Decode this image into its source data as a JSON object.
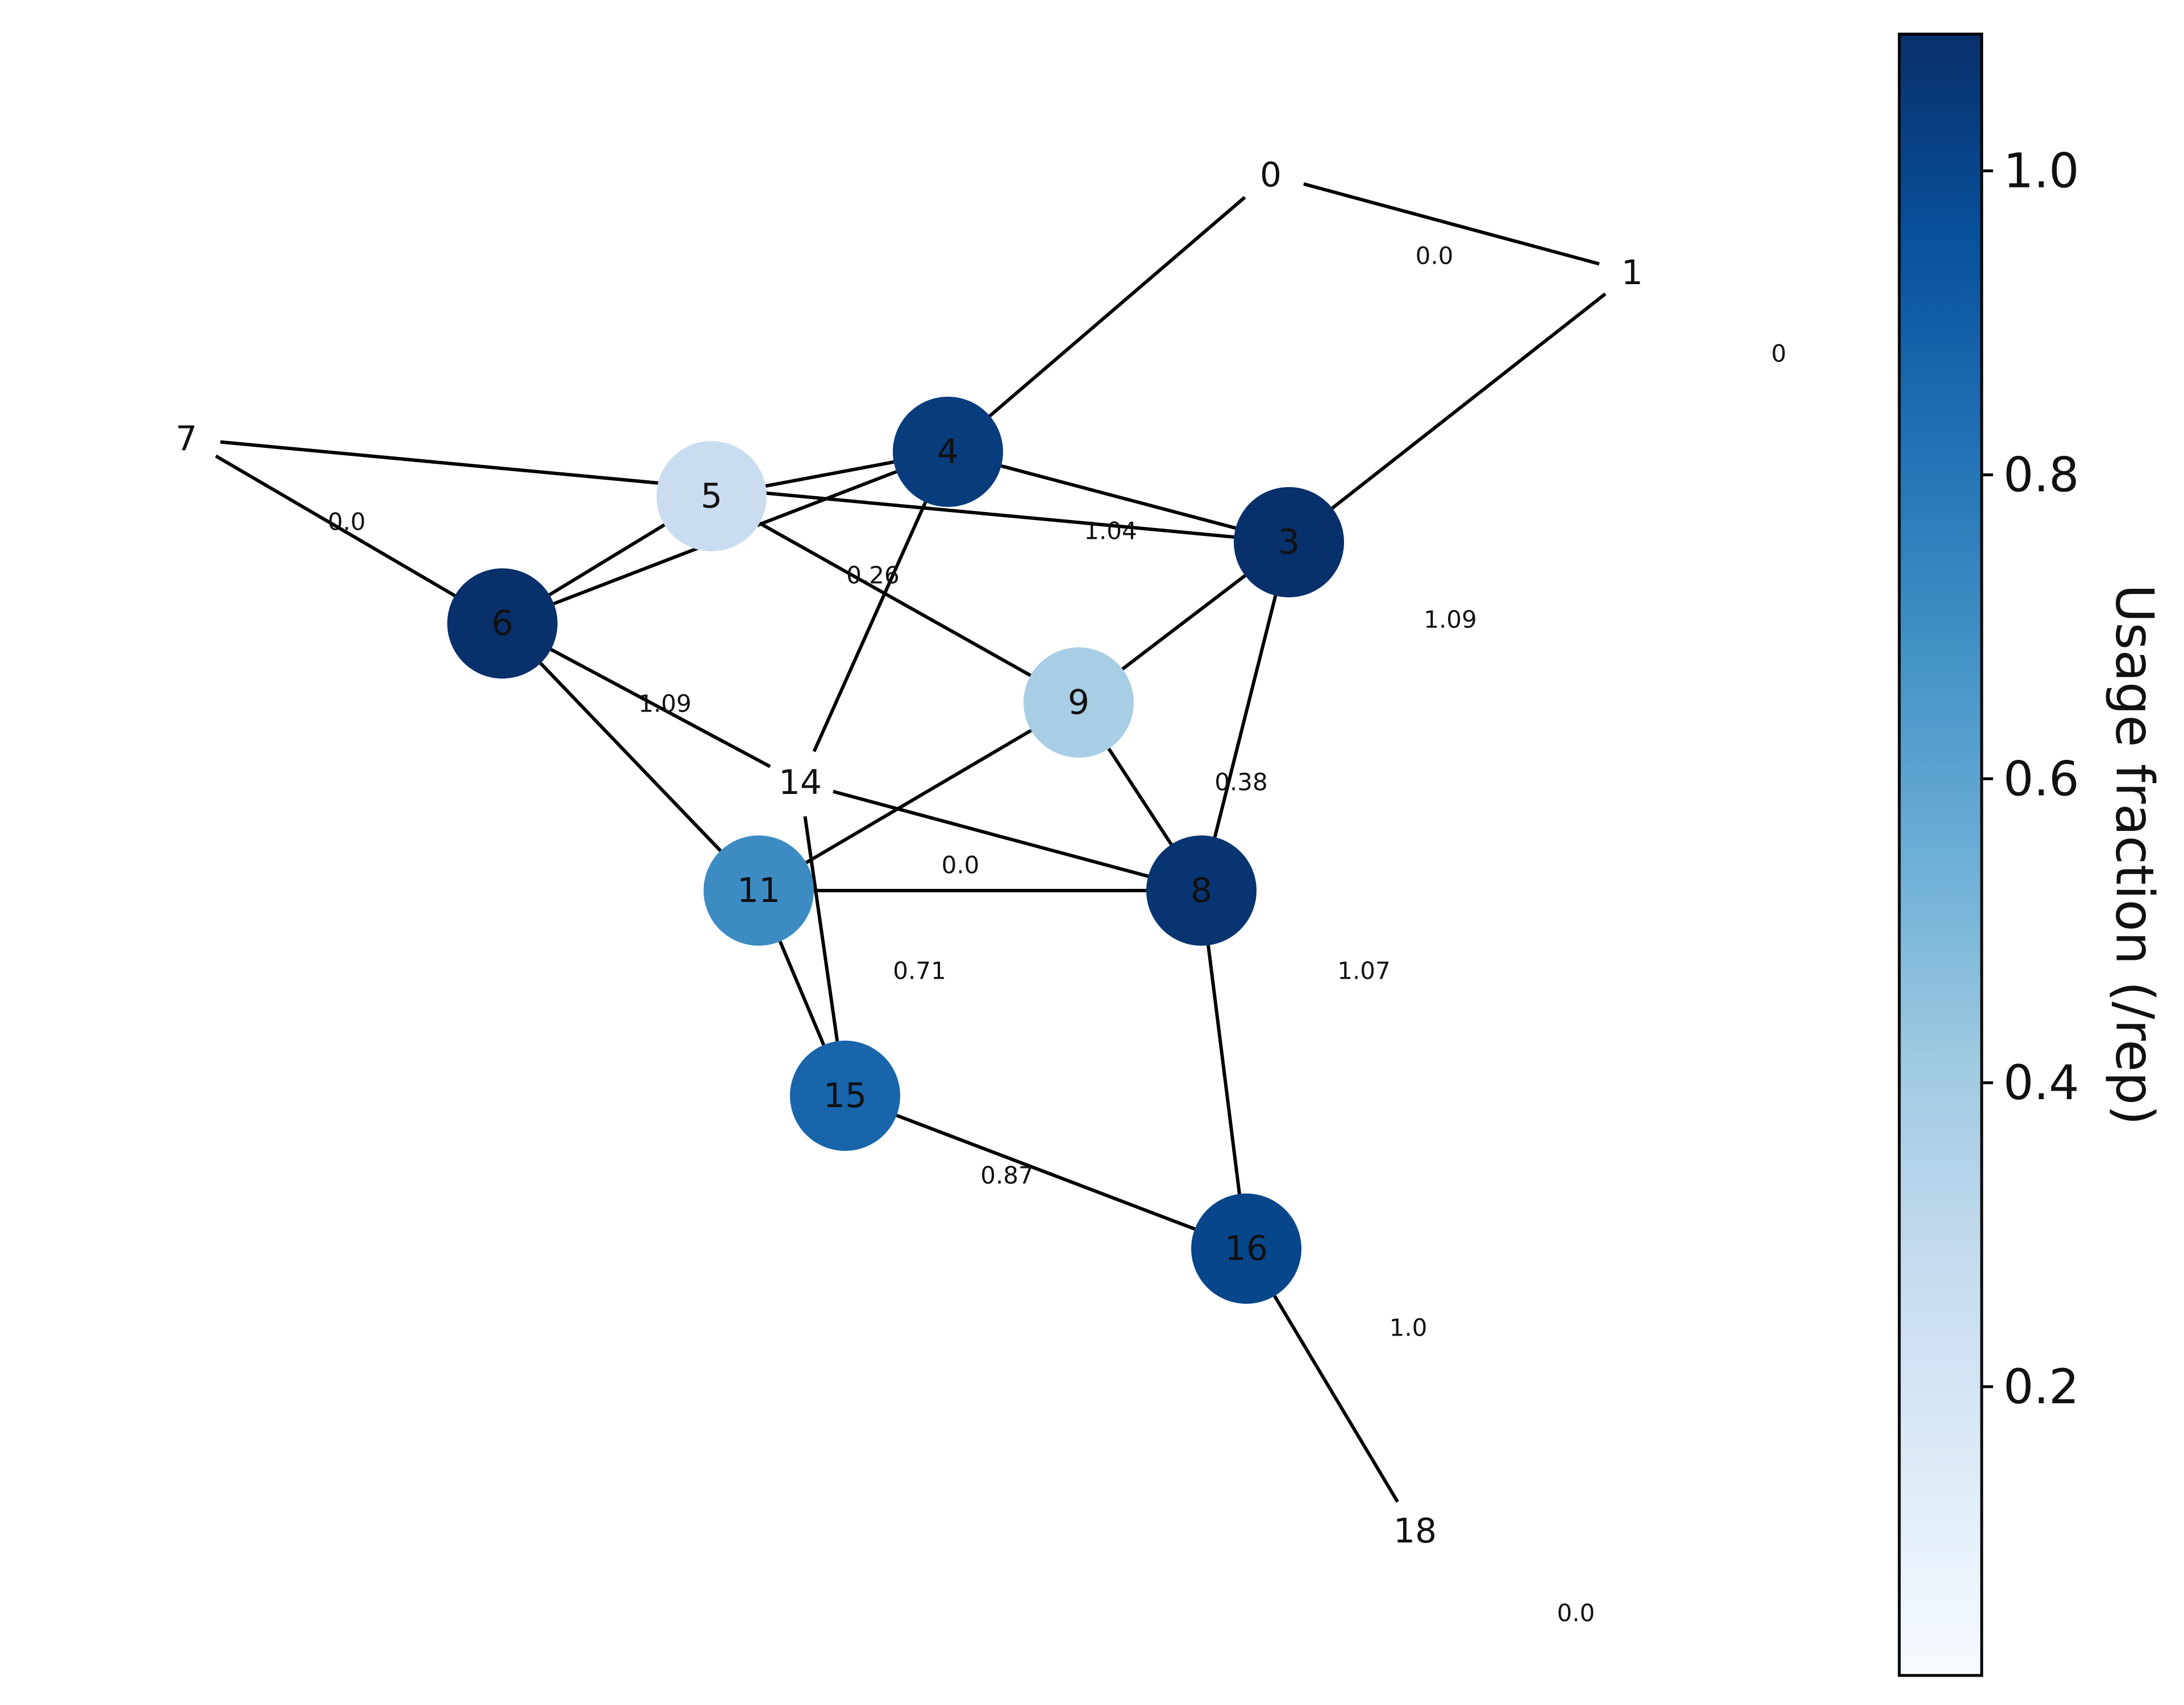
{
  "colors": {
    "edge": "#000000",
    "label": "#111111",
    "colormap": [
      "#f7fbff",
      "#deebf7",
      "#c6dbef",
      "#9ecae1",
      "#6baed6",
      "#4292c6",
      "#2171b5",
      "#08519c",
      "#08306b"
    ]
  },
  "nodes": [
    {
      "id": "0",
      "label": "0",
      "value": null
    },
    {
      "id": "1",
      "label": "1",
      "value": null
    },
    {
      "id": "3",
      "label": "3",
      "value": 1.09
    },
    {
      "id": "4",
      "label": "4",
      "value": 1.04
    },
    {
      "id": "5",
      "label": "5",
      "value": 0.26
    },
    {
      "id": "6",
      "label": "6",
      "value": 1.09
    },
    {
      "id": "7",
      "label": "7",
      "value": null
    },
    {
      "id": "8",
      "label": "8",
      "value": 1.07
    },
    {
      "id": "9",
      "label": "9",
      "value": 0.38
    },
    {
      "id": "11",
      "label": "11",
      "value": 0.71
    },
    {
      "id": "14",
      "label": "14",
      "value": null
    },
    {
      "id": "15",
      "label": "15",
      "value": 0.87
    },
    {
      "id": "16",
      "label": "16",
      "value": 1.0
    },
    {
      "id": "18",
      "label": "18",
      "value": null
    }
  ],
  "edges": [
    [
      "0",
      "1"
    ],
    [
      "0",
      "4"
    ],
    [
      "1",
      "3"
    ],
    [
      "7",
      "3"
    ],
    [
      "7",
      "6"
    ],
    [
      "4",
      "5"
    ],
    [
      "4",
      "6"
    ],
    [
      "4",
      "3"
    ],
    [
      "4",
      "14"
    ],
    [
      "5",
      "6"
    ],
    [
      "5",
      "9"
    ],
    [
      "3",
      "9"
    ],
    [
      "3",
      "8"
    ],
    [
      "6",
      "14"
    ],
    [
      "6",
      "11"
    ],
    [
      "9",
      "11"
    ],
    [
      "9",
      "8"
    ],
    [
      "14",
      "8"
    ],
    [
      "14",
      "15"
    ],
    [
      "11",
      "8"
    ],
    [
      "11",
      "15"
    ],
    [
      "8",
      "16"
    ],
    [
      "15",
      "16"
    ],
    [
      "16",
      "18"
    ]
  ],
  "value_labels": [
    {
      "text": "0.0"
    },
    {
      "text": "0"
    },
    {
      "text": "0.0"
    },
    {
      "text": "1.04"
    },
    {
      "text": "0.26"
    },
    {
      "text": "1.09"
    },
    {
      "text": "1.09"
    },
    {
      "text": "0.38"
    },
    {
      "text": "0.0"
    },
    {
      "text": "0.71"
    },
    {
      "text": "1.07"
    },
    {
      "text": "0.87"
    },
    {
      "text": "1.0"
    },
    {
      "text": "0.0"
    }
  ],
  "colorbar": {
    "title": "Usage fraction (/rep)",
    "min": 0.01,
    "max": 1.09,
    "ticks": [
      "0.2",
      "0.4",
      "0.6",
      "0.8",
      "1.0"
    ]
  }
}
